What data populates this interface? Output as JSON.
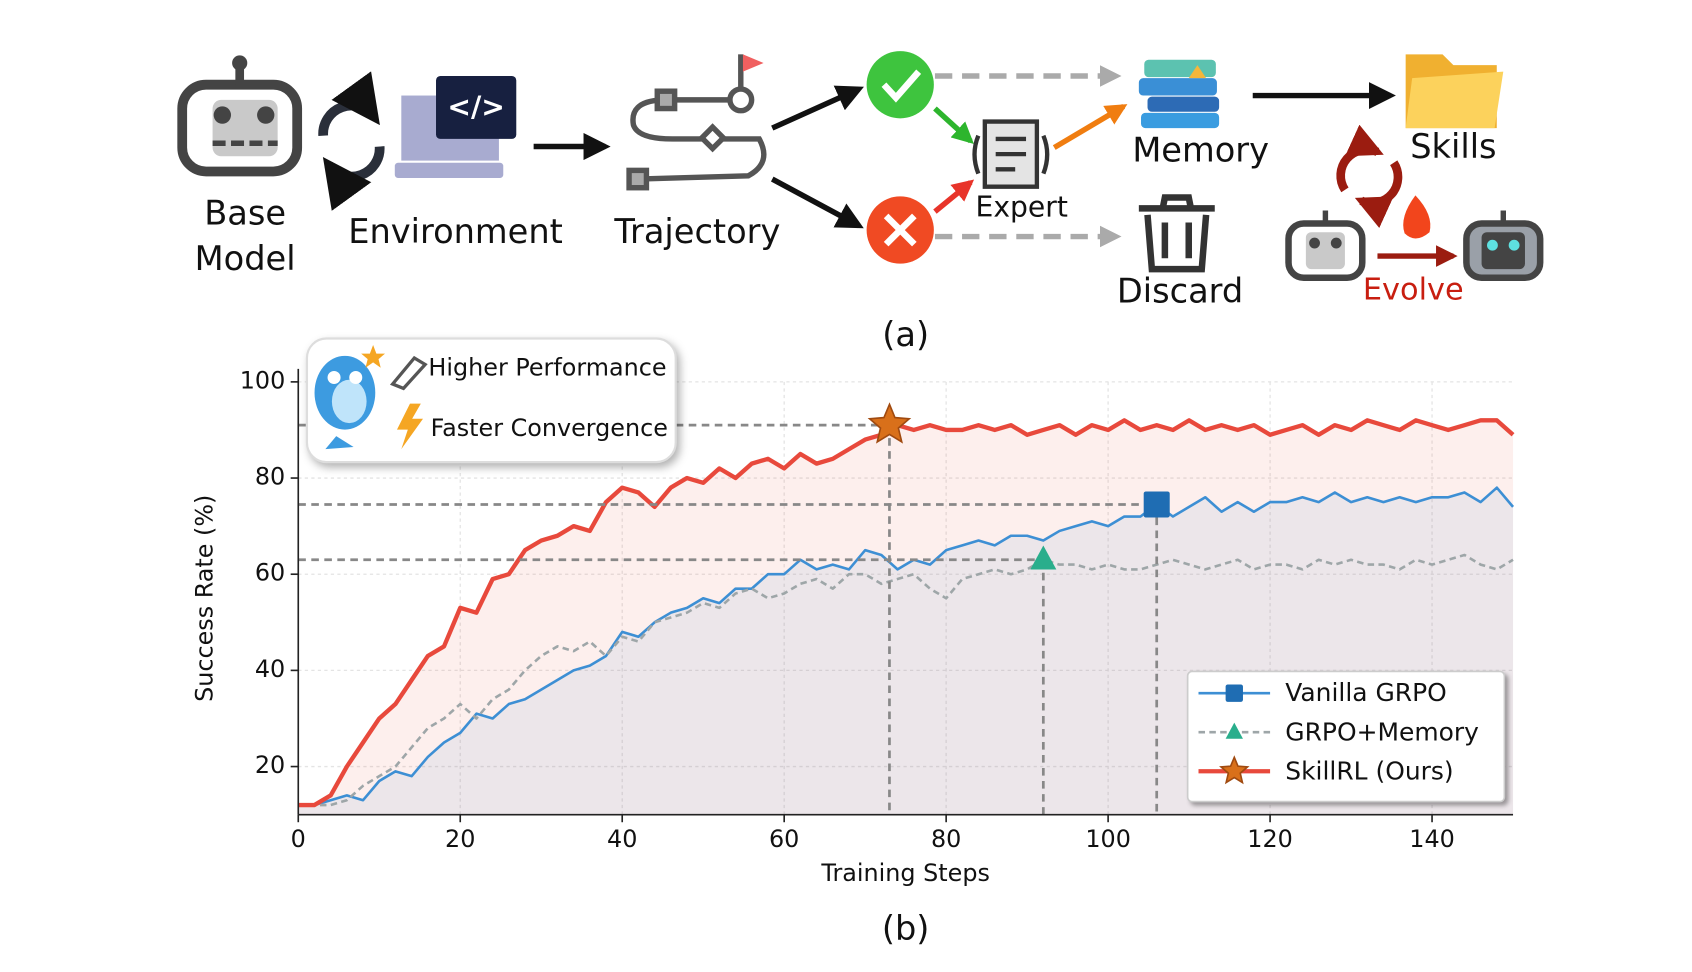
{
  "diagram": {
    "base_model": [
      "Base",
      "Model"
    ],
    "environment": "Environment",
    "trajectory": "Trajectory",
    "expert": "Expert",
    "memory": "Memory",
    "discard": "Discard",
    "skills": "Skills",
    "evolve": "Evolve",
    "caption": "(a)"
  },
  "callout": [
    "Higher Performance",
    "Faster Convergence"
  ],
  "caption_b": "(b)",
  "chart_data": {
    "type": "line",
    "xlabel": "Training Steps",
    "ylabel": "Success Rate (%)",
    "xlim": [
      0,
      150
    ],
    "ylim": [
      10,
      100
    ],
    "xticks": [
      0,
      20,
      40,
      60,
      80,
      100,
      120,
      140
    ],
    "yticks": [
      20,
      40,
      60,
      80,
      100
    ],
    "grid": true,
    "legend": "lower right",
    "x": [
      0,
      2,
      4,
      6,
      8,
      10,
      12,
      14,
      16,
      18,
      20,
      22,
      24,
      26,
      28,
      30,
      32,
      34,
      36,
      38,
      40,
      42,
      44,
      46,
      48,
      50,
      52,
      54,
      56,
      58,
      60,
      62,
      64,
      66,
      68,
      70,
      72,
      74,
      76,
      78,
      80,
      82,
      84,
      86,
      88,
      90,
      92,
      94,
      96,
      98,
      100,
      102,
      104,
      106,
      108,
      110,
      112,
      114,
      116,
      118,
      120,
      122,
      124,
      126,
      128,
      130,
      132,
      134,
      136,
      138,
      140,
      142,
      144,
      146,
      148,
      150
    ],
    "series": [
      {
        "name": "Vanilla GRPO",
        "color": "#3d8fd4",
        "marker": "square",
        "marker_color": "#1f6db3",
        "dash": false,
        "highlight": {
          "x": 106,
          "y": 74.5
        },
        "values": [
          12,
          12,
          13,
          14,
          13,
          17,
          19,
          18,
          22,
          25,
          27,
          31,
          30,
          33,
          34,
          36,
          38,
          40,
          41,
          43,
          48,
          47,
          50,
          52,
          53,
          55,
          54,
          57,
          57,
          60,
          60,
          63,
          61,
          62,
          61,
          65,
          64,
          61,
          63,
          62,
          65,
          66,
          67,
          66,
          68,
          68,
          67,
          69,
          70,
          71,
          70,
          72,
          72,
          74.5,
          72,
          74,
          76,
          73,
          75,
          73,
          75,
          75,
          76,
          75,
          77,
          75,
          76,
          75,
          76,
          75,
          76,
          76,
          77,
          75,
          78,
          74
        ]
      },
      {
        "name": "GRPO+Memory",
        "color": "#9ea6a8",
        "marker": "triangle",
        "marker_color": "#2aae8c",
        "dash": true,
        "highlight": {
          "x": 92,
          "y": 63
        },
        "values": [
          12,
          12,
          12,
          13,
          16,
          18,
          20,
          24,
          28,
          30,
          33,
          30,
          34,
          36,
          40,
          43,
          45,
          44,
          46,
          43,
          47,
          46,
          50,
          51,
          52,
          54,
          53,
          56,
          57,
          55,
          56,
          58,
          59,
          57,
          60,
          60,
          58,
          59,
          60,
          57,
          55,
          59,
          60,
          61,
          60,
          61,
          63,
          62,
          62,
          61,
          62,
          61,
          61,
          62,
          63,
          62,
          61,
          62,
          63,
          61,
          62,
          62,
          61,
          63,
          62,
          63,
          62,
          62,
          61,
          63,
          62,
          63,
          64,
          62,
          61,
          63
        ]
      },
      {
        "name": "SkillRL (Ours)",
        "color": "#e8493c",
        "marker": "star",
        "marker_color": "#d9701a",
        "dash": false,
        "highlight": {
          "x": 73,
          "y": 91
        },
        "values": [
          12,
          12,
          14,
          20,
          25,
          30,
          33,
          38,
          43,
          45,
          53,
          52,
          59,
          60,
          65,
          67,
          68,
          70,
          69,
          75,
          78,
          77,
          74,
          78,
          80,
          79,
          82,
          80,
          83,
          84,
          82,
          85,
          83,
          84,
          86,
          88,
          89,
          91,
          90,
          91,
          90,
          90,
          91,
          90,
          91,
          89,
          90,
          91,
          89,
          91,
          90,
          92,
          90,
          91,
          90,
          92,
          90,
          91,
          90,
          91,
          89,
          90,
          91,
          89,
          91,
          90,
          92,
          91,
          90,
          92,
          91,
          90,
          91,
          92,
          92,
          89
        ]
      }
    ]
  }
}
